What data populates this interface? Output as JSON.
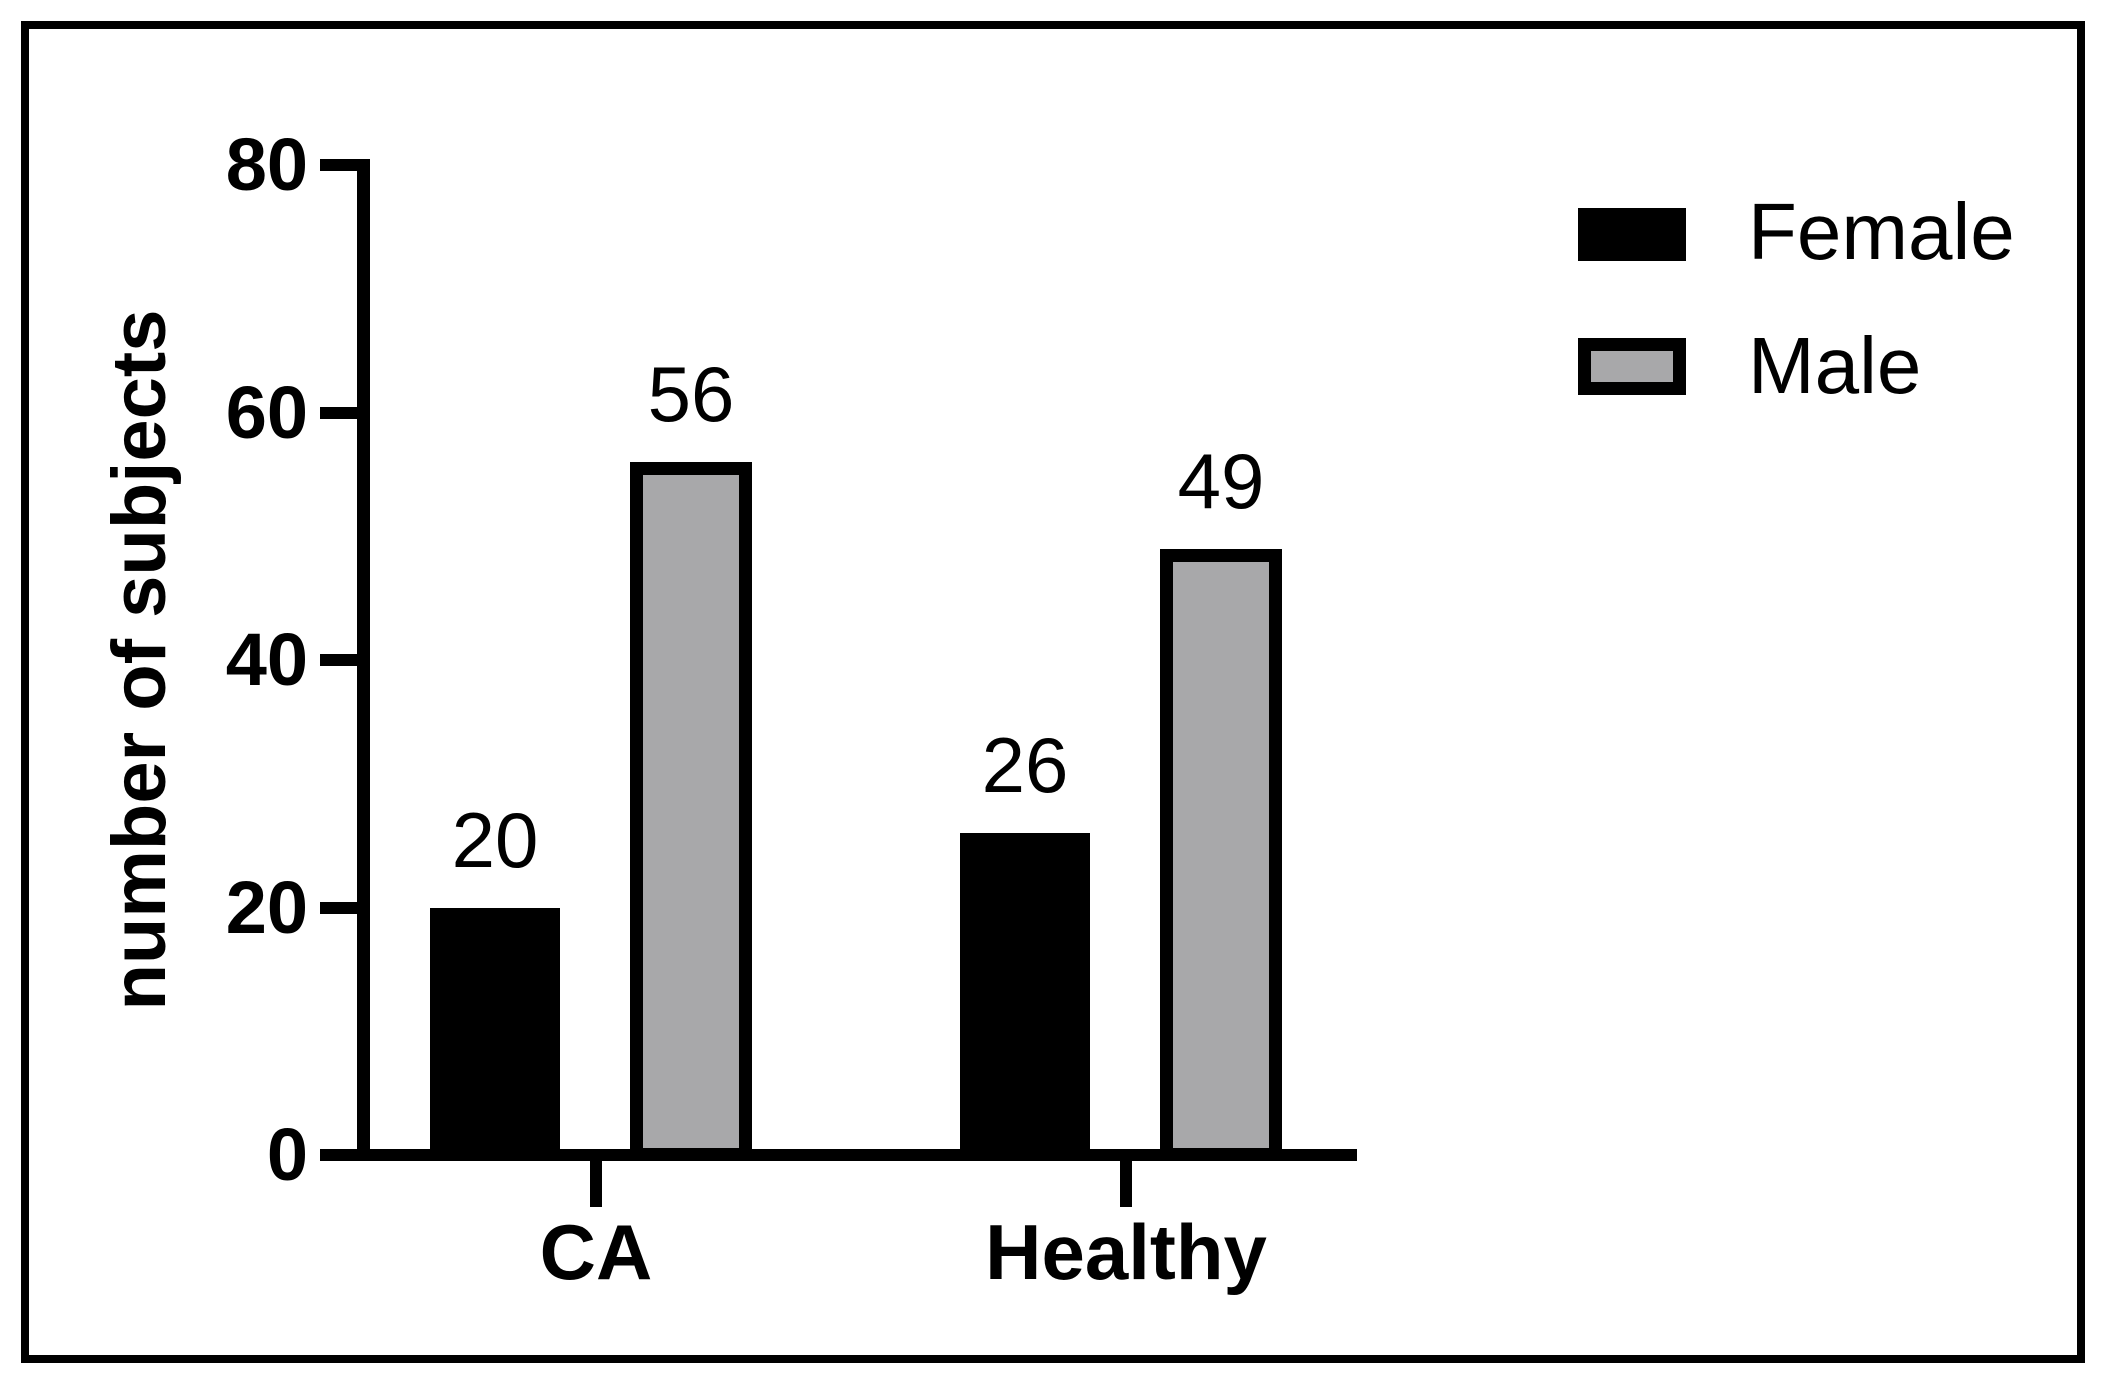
{
  "chart_data": {
    "type": "bar",
    "title": "",
    "xlabel": "",
    "ylabel": "number of subjects",
    "categories": [
      "CA",
      "Healthy"
    ],
    "series": [
      {
        "name": "Female",
        "values": [
          20,
          26
        ],
        "fill": "#000000",
        "border": "#000000"
      },
      {
        "name": "Male",
        "values": [
          56,
          49
        ],
        "fill": "#A8A8AA",
        "border": "#000000"
      }
    ],
    "value_labels": [
      [
        "20",
        "26"
      ],
      [
        "56",
        "49"
      ]
    ],
    "ylim": [
      0,
      80
    ],
    "yticks": [
      "0",
      "20",
      "40",
      "60",
      "80"
    ],
    "grid": false,
    "legend_position": "upper-right",
    "bar_outline": true
  },
  "legend": {
    "items": [
      {
        "label": "Female",
        "swatch": "solid-black"
      },
      {
        "label": "Male",
        "swatch": "gray-with-black-border"
      }
    ]
  },
  "colors": {
    "background": "#FFFFFF",
    "frame": "#000000",
    "axis": "#000000",
    "text": "#000000",
    "female_fill": "#000000",
    "male_fill": "#A8A8AA"
  }
}
